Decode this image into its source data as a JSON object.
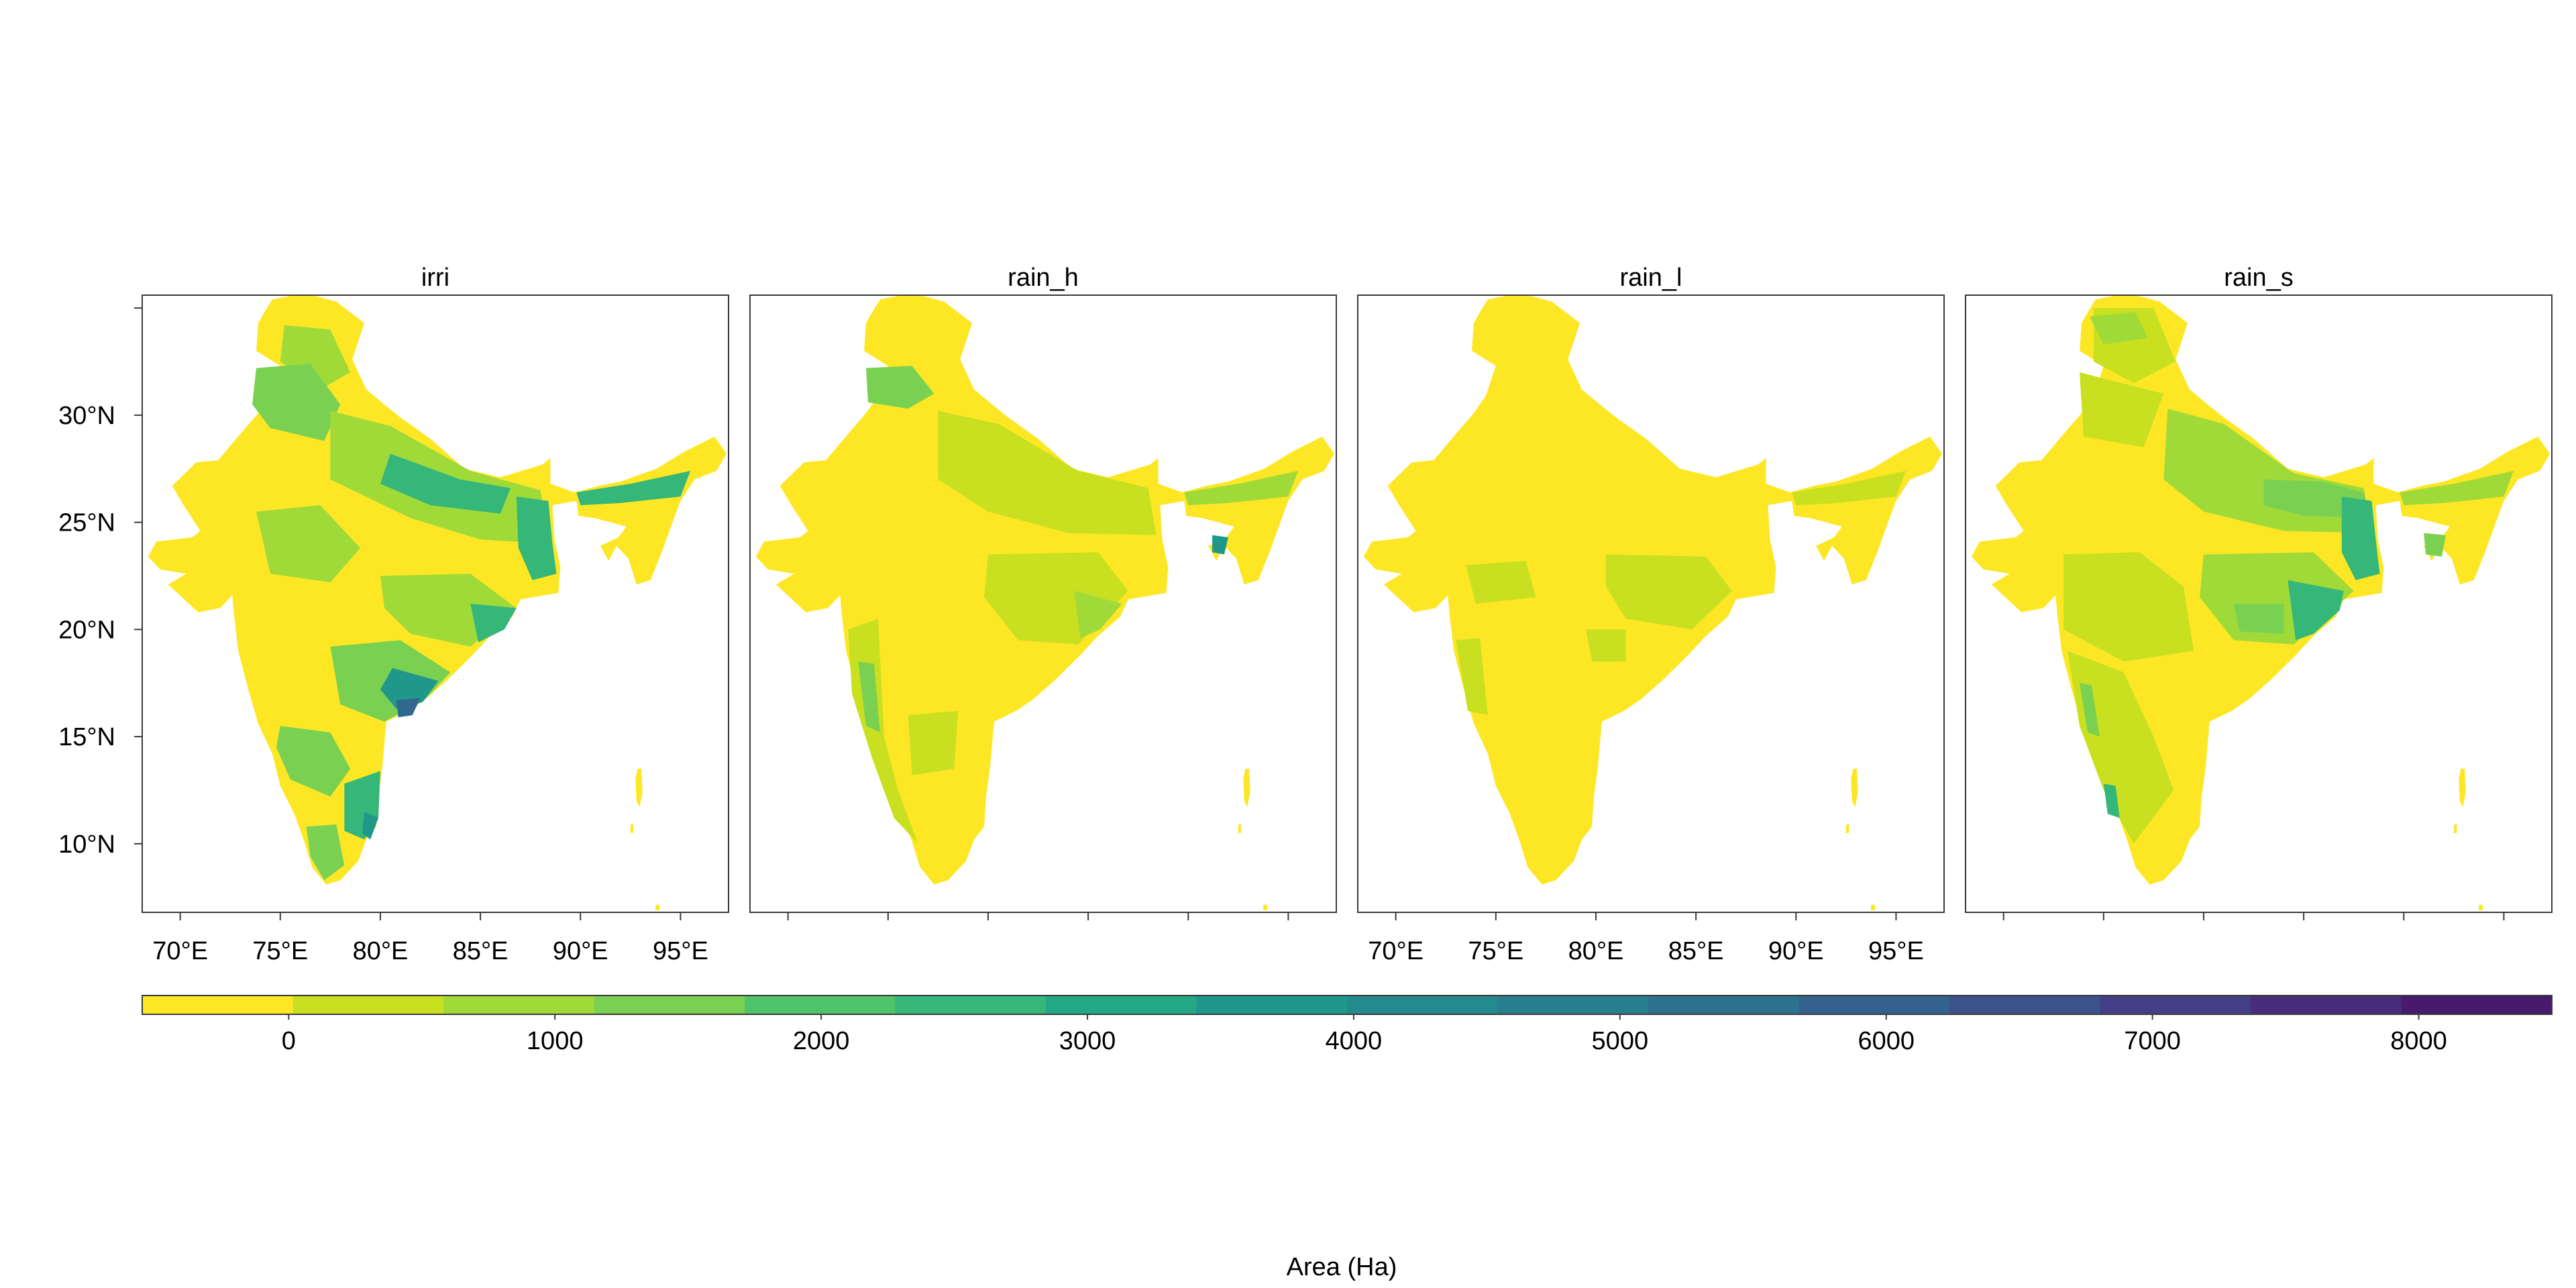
{
  "panels": [
    {
      "title": "irri"
    },
    {
      "title": "rain_h"
    },
    {
      "title": "rain_l"
    },
    {
      "title": "rain_s"
    }
  ],
  "axes": {
    "lon_ticks": [
      70,
      75,
      80,
      85,
      90,
      95
    ],
    "lon_labels": [
      "70°E",
      "75°E",
      "80°E",
      "85°E",
      "90°E",
      "95°E"
    ],
    "lat_ticks": [
      30,
      25,
      20,
      15,
      10
    ],
    "lat_labels": [
      "30°N",
      "25°N",
      "20°N",
      "15°N",
      "10°N"
    ],
    "lon_range": [
      68.1,
      97.4
    ],
    "lat_range": [
      6.8,
      35.6
    ]
  },
  "colorbar": {
    "title": "Area (Ha)",
    "ticks": [
      0,
      1000,
      2000,
      3000,
      4000,
      5000,
      6000,
      7000,
      8000
    ],
    "tick_labels": [
      "0",
      "1000",
      "2000",
      "3000",
      "4000",
      "5000",
      "6000",
      "7000",
      "8000"
    ],
    "colors": [
      "#fde725",
      "#c8e020",
      "#a0da39",
      "#7ad151",
      "#4fc46a",
      "#35b779",
      "#22a884",
      "#1f988b",
      "#238a8d",
      "#277f8e",
      "#2c728e",
      "#33638d",
      "#3b528b",
      "#433e85",
      "#472d7b",
      "#471a6e"
    ],
    "range": [
      -550,
      8500
    ]
  },
  "palette": {
    "low": "#fde725",
    "lowmid": "#c8e020",
    "mid1": "#a0da39",
    "mid2": "#7ad151",
    "mid3": "#35b779",
    "mid4": "#1f988b",
    "high": "#31688e",
    "vhigh": "#3e4989"
  }
}
